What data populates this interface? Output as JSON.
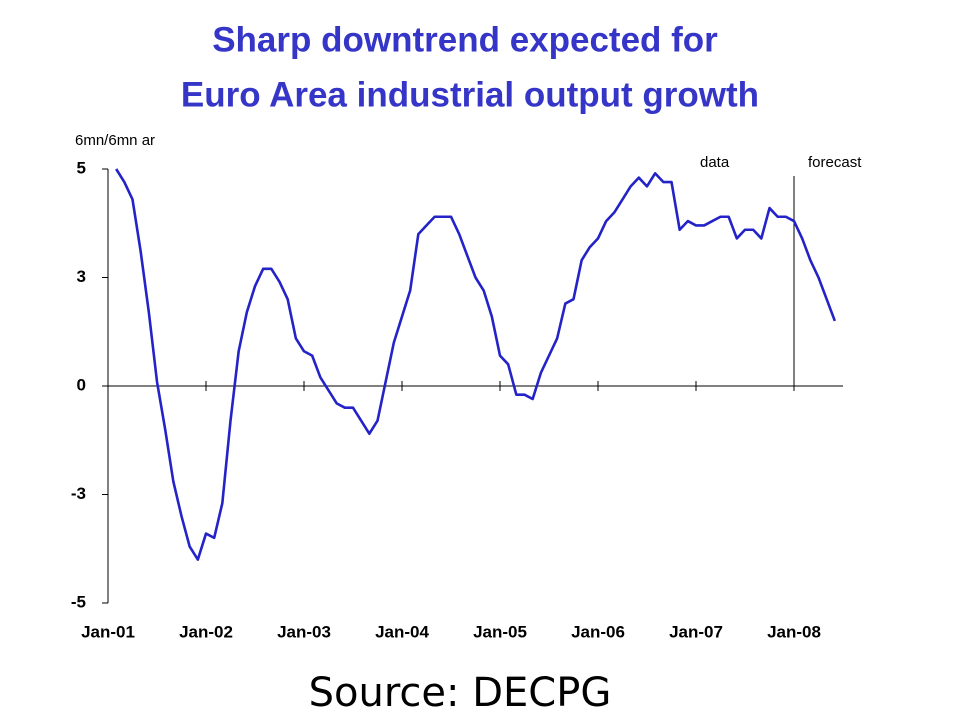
{
  "chart_data": {
    "type": "line",
    "title": [
      "Sharp downtrend expected for",
      "Euro Area industrial output growth"
    ],
    "y_label": "6mn/6mn ar",
    "annotations": {
      "data": "data",
      "forecast": "forecast",
      "divider": "2008-01"
    },
    "source": "Source: DECPG",
    "x": [
      "2001-02",
      "2001-03",
      "2001-04",
      "2001-05",
      "2001-06",
      "2001-07",
      "2001-08",
      "2001-09",
      "2001-10",
      "2001-11",
      "2001-12",
      "2002-01",
      "2002-02",
      "2002-03",
      "2002-04",
      "2002-05",
      "2002-06",
      "2002-07",
      "2002-08",
      "2002-09",
      "2002-10",
      "2002-11",
      "2002-12",
      "2003-01",
      "2003-02",
      "2003-03",
      "2003-04",
      "2003-05",
      "2003-06",
      "2003-07",
      "2003-08",
      "2003-09",
      "2003-10",
      "2003-11",
      "2003-12",
      "2004-01",
      "2004-02",
      "2004-03",
      "2004-04",
      "2004-05",
      "2004-06",
      "2004-07",
      "2004-08",
      "2004-09",
      "2004-10",
      "2004-11",
      "2004-12",
      "2005-01",
      "2005-02",
      "2005-03",
      "2005-04",
      "2005-05",
      "2005-06",
      "2005-07",
      "2005-08",
      "2005-09",
      "2005-10",
      "2005-11",
      "2005-12",
      "2006-01",
      "2006-02",
      "2006-03",
      "2006-04",
      "2006-05",
      "2006-06",
      "2006-07",
      "2006-08",
      "2006-09",
      "2006-10",
      "2006-11",
      "2006-12",
      "2007-01",
      "2007-02",
      "2007-03",
      "2007-04",
      "2007-05",
      "2007-06",
      "2007-07",
      "2007-08",
      "2007-09",
      "2007-10",
      "2007-11",
      "2007-12",
      "2008-01",
      "2008-02",
      "2008-03",
      "2008-04",
      "2008-05",
      "2008-06"
    ],
    "series": [
      {
        "name": "Euro Area industrial output growth",
        "color": "#2323c8",
        "values": [
          5.0,
          4.7,
          4.3,
          3.1,
          1.7,
          0.1,
          -1.0,
          -2.2,
          -3.0,
          -3.7,
          -4.0,
          -3.4,
          -3.5,
          -2.7,
          -0.8,
          0.8,
          1.7,
          2.3,
          2.7,
          2.7,
          2.4,
          2.0,
          1.1,
          0.8,
          0.7,
          0.2,
          -0.1,
          -0.4,
          -0.5,
          -0.5,
          -0.8,
          -1.1,
          -0.8,
          0.1,
          1.0,
          1.6,
          2.2,
          3.5,
          3.7,
          3.9,
          3.9,
          3.9,
          3.5,
          3.0,
          2.5,
          2.2,
          1.6,
          0.7,
          0.5,
          -0.2,
          -0.2,
          -0.3,
          0.3,
          0.7,
          1.1,
          1.9,
          2.0,
          2.9,
          3.2,
          3.4,
          3.8,
          4.0,
          4.3,
          4.6,
          4.8,
          4.6,
          4.9,
          4.7,
          4.7,
          3.6,
          3.8,
          3.7,
          3.7,
          3.8,
          3.9,
          3.9,
          3.4,
          3.6,
          3.6,
          3.4,
          4.1,
          3.9,
          3.9,
          3.8,
          3.4,
          2.9,
          2.5,
          2.0,
          1.5
        ]
      }
    ],
    "xlim": [
      "2001-01",
      "2008-07"
    ],
    "xticks": [
      {
        "value": "2001-01",
        "label": "Jan-01"
      },
      {
        "value": "2002-01",
        "label": "Jan-02"
      },
      {
        "value": "2003-01",
        "label": "Jan-03"
      },
      {
        "value": "2004-01",
        "label": "Jan-04"
      },
      {
        "value": "2005-01",
        "label": "Jan-05"
      },
      {
        "value": "2006-01",
        "label": "Jan-06"
      },
      {
        "value": "2007-01",
        "label": "Jan-07"
      },
      {
        "value": "2008-01",
        "label": "Jan-08"
      }
    ],
    "ylim": [
      -5,
      5
    ],
    "yticks": [
      5,
      {
        "value": 2.5,
        "label": "3"
      },
      0,
      {
        "value": -2.5,
        "label": "-3"
      },
      -5
    ],
    "grid": false
  }
}
